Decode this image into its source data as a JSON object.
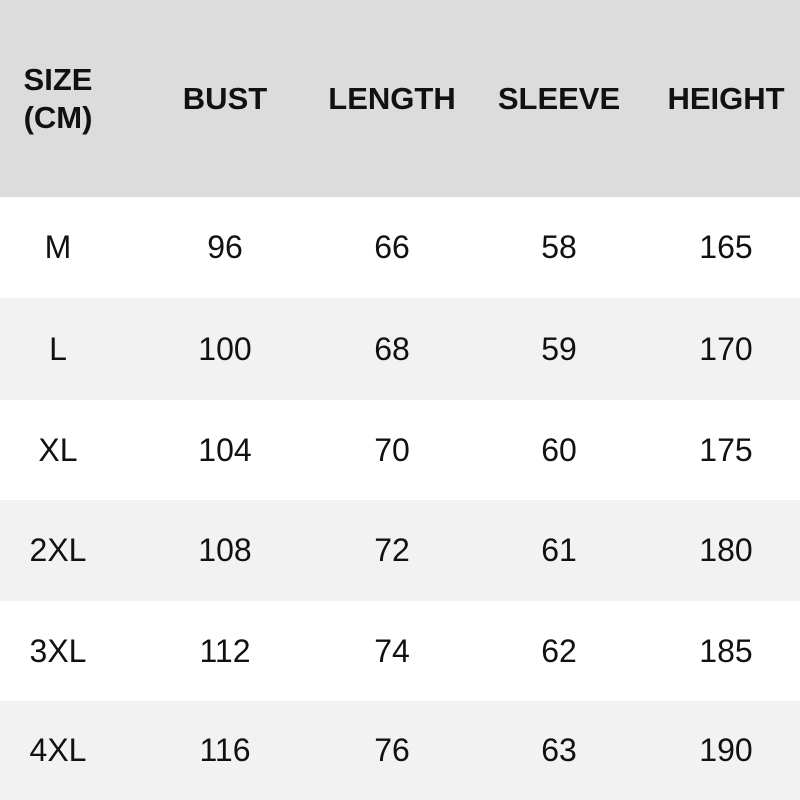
{
  "table": {
    "header": [
      "SIZE (CM)",
      "BUST",
      "LENGTH",
      "SLEEVE",
      "HEIGHT"
    ],
    "rows": [
      [
        "M",
        "96",
        "66",
        "58",
        "165"
      ],
      [
        "L",
        "100",
        "68",
        "59",
        "170"
      ],
      [
        "XL",
        "104",
        "70",
        "60",
        "175"
      ],
      [
        "2XL",
        "108",
        "72",
        "61",
        "180"
      ],
      [
        "3XL",
        "112",
        "74",
        "62",
        "185"
      ],
      [
        "4XL",
        "116",
        "76",
        "63",
        "190"
      ]
    ]
  }
}
